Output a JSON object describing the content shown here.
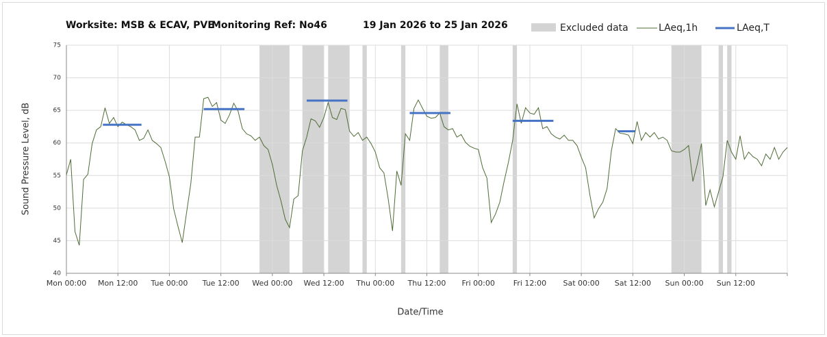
{
  "chart_data": {
    "type": "line",
    "title": [
      "Worksite: MSB & ECAV, PVE",
      "Monitoring Ref: No46",
      "19 Jan 2026 to 25 Jan 2026"
    ],
    "xlabel": "Date/Time",
    "ylabel": "Sound Pressure Level, dB",
    "xlim": [
      0,
      168
    ],
    "xticks": [
      {
        "value": 0,
        "label": "Mon 00:00"
      },
      {
        "value": 12,
        "label": "Mon 12:00"
      },
      {
        "value": 24,
        "label": "Tue 00:00"
      },
      {
        "value": 36,
        "label": "Tue 12:00"
      },
      {
        "value": 48,
        "label": "Wed 00:00"
      },
      {
        "value": 60,
        "label": "Wed 12:00"
      },
      {
        "value": 72,
        "label": "Thu 00:00"
      },
      {
        "value": 84,
        "label": "Thu 12:00"
      },
      {
        "value": 96,
        "label": "Fri 00:00"
      },
      {
        "value": 108,
        "label": "Fri 12:00"
      },
      {
        "value": 120,
        "label": "Sat 00:00"
      },
      {
        "value": 132,
        "label": "Sat 12:00"
      },
      {
        "value": 144,
        "label": "Sun 00:00"
      },
      {
        "value": 156,
        "label": "Sun 12:00"
      },
      {
        "value": 168,
        "label": null
      }
    ],
    "ylim": [
      40,
      75
    ],
    "yticks": [
      40,
      45,
      50,
      55,
      60,
      65,
      70,
      75
    ],
    "grid": true,
    "x": [
      0,
      1,
      2,
      3,
      4,
      5,
      6,
      7,
      8,
      9,
      10,
      11,
      12,
      13,
      14,
      15,
      16,
      17,
      18,
      19,
      20,
      21,
      22,
      23,
      24,
      25,
      26,
      27,
      28,
      29,
      30,
      31,
      32,
      33,
      34,
      35,
      36,
      37,
      38,
      39,
      40,
      41,
      42,
      43,
      44,
      45,
      46,
      47,
      48,
      49,
      50,
      51,
      52,
      53,
      54,
      55,
      56,
      57,
      58,
      59,
      60,
      61,
      62,
      63,
      64,
      65,
      66,
      67,
      68,
      69,
      70,
      71,
      72,
      73,
      74,
      75,
      76,
      77,
      78,
      79,
      80,
      81,
      82,
      83,
      84,
      85,
      86,
      87,
      88,
      89,
      90,
      91,
      92,
      93,
      94,
      95,
      96,
      97,
      98,
      99,
      100,
      101,
      102,
      103,
      104,
      105,
      106,
      107,
      108,
      109,
      110,
      111,
      112,
      113,
      114,
      115,
      116,
      117,
      118,
      119,
      120,
      121,
      122,
      123,
      124,
      125,
      126,
      127,
      128,
      129,
      130,
      131,
      132,
      133,
      134,
      135,
      136,
      137,
      138,
      139,
      140,
      141,
      142,
      143,
      144,
      145,
      146,
      147,
      148,
      149,
      150,
      151,
      152,
      153,
      154,
      155,
      156,
      157,
      158,
      159,
      160,
      161,
      162,
      163,
      164,
      165,
      166,
      167,
      168
    ],
    "series": [
      {
        "name": "LAeq,1h",
        "color": "#4e6b34",
        "values": [
          55.1,
          57.5,
          46.4,
          44.3,
          54.4,
          55.2,
          59.9,
          62,
          62.5,
          65.4,
          63,
          63.9,
          62.5,
          63.2,
          62.8,
          62.5,
          62,
          60.4,
          60.7,
          62,
          60.4,
          59.9,
          59.3,
          57.2,
          54.8,
          49.9,
          47.2,
          44.7,
          49.3,
          53.8,
          60.9,
          60.9,
          66.8,
          67,
          65.6,
          66.2,
          63.5,
          63,
          64.3,
          66.1,
          64.9,
          62.2,
          61.4,
          61.1,
          60.4,
          60.9,
          59.6,
          59,
          56.7,
          53.5,
          51.1,
          48.3,
          47,
          51.4,
          51.9,
          58.8,
          60.9,
          63.7,
          63.4,
          62.4,
          63.9,
          66.2,
          63.9,
          63.6,
          65.3,
          65.1,
          61.8,
          61,
          61.6,
          60.4,
          60.9,
          59.9,
          58.6,
          56.2,
          55.4,
          51.4,
          46.5,
          55.7,
          53.5,
          61.4,
          60.4,
          65.3,
          66.6,
          65.3,
          64.1,
          63.8,
          63.9,
          64.6,
          62.5,
          62,
          62.2,
          60.9,
          61.3,
          60.1,
          59.5,
          59.2,
          59,
          56.2,
          54.6,
          47.8,
          49.1,
          50.9,
          54.1,
          57,
          60.4,
          66,
          63,
          65.4,
          64.6,
          64.4,
          65.4,
          62.2,
          62.5,
          61.4,
          60.9,
          60.6,
          61.2,
          60.4,
          60.4,
          59.6,
          57.8,
          56.2,
          52,
          48.5,
          49.9,
          50.9,
          53,
          58.8,
          62.2,
          61.5,
          61.4,
          61.2,
          59.9,
          63.3,
          60.4,
          61.6,
          60.9,
          61.6,
          60.6,
          60.9,
          60.4,
          58.8,
          58.6,
          58.6,
          59,
          59.6,
          54.1,
          56.7,
          59.9,
          50.4,
          52.8,
          50.2,
          52.5,
          54.8,
          60.4,
          58.6,
          57.5,
          61.1,
          57.5,
          58.6,
          57.9,
          57.5,
          56.5,
          58.3,
          57.5,
          59.3,
          57.5,
          58.6,
          59.3
        ]
      }
    ],
    "excluded": {
      "name": "Excluded data",
      "color": "#d4d4d4",
      "ranges": [
        [
          45,
          52
        ],
        [
          55,
          60
        ],
        [
          61,
          66
        ],
        [
          69,
          70
        ],
        [
          78,
          79
        ],
        [
          87,
          89
        ],
        [
          104,
          105
        ],
        [
          141,
          148
        ],
        [
          152,
          153
        ],
        [
          154,
          155
        ]
      ]
    },
    "laeq_t": {
      "name": "LAeq,T",
      "color": "#4472c4",
      "segments": [
        {
          "start": 8.5,
          "end": 17.5,
          "value": 62.8
        },
        {
          "start": 32,
          "end": 41.5,
          "value": 65.2
        },
        {
          "start": 56,
          "end": 65.5,
          "value": 66.5
        },
        {
          "start": 80,
          "end": 89.5,
          "value": 64.6
        },
        {
          "start": 104,
          "end": 113.5,
          "value": 63.4
        },
        {
          "start": 128.5,
          "end": 132.5,
          "value": 61.8
        }
      ]
    }
  }
}
